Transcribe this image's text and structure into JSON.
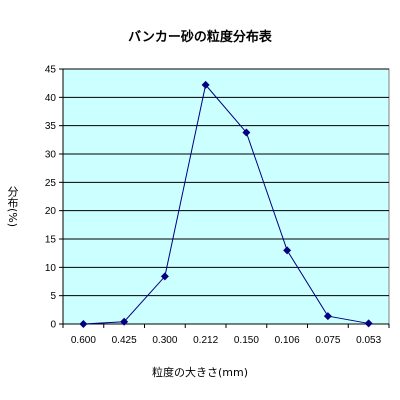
{
  "chart_data": {
    "type": "line",
    "title": "バンカー砂の粒度分布表",
    "xlabel": "粒度の大きさ(mm)",
    "ylabel": "分布(%)",
    "categories": [
      "0.600",
      "0.425",
      "0.300",
      "0.212",
      "0.150",
      "0.106",
      "0.075",
      "0.053"
    ],
    "series": [
      {
        "values": [
          0.0,
          0.4,
          8.4,
          42.2,
          33.8,
          13.0,
          1.4,
          0.1
        ]
      }
    ],
    "ylim": [
      0,
      45
    ],
    "yticks": [
      0,
      5,
      10,
      15,
      20,
      25,
      30,
      35,
      40,
      45
    ],
    "grid": true,
    "legend": "none",
    "colors": {
      "plot_bg": "#ccffff",
      "line": "#000080",
      "marker": "#000080",
      "grid": "#000000"
    }
  }
}
